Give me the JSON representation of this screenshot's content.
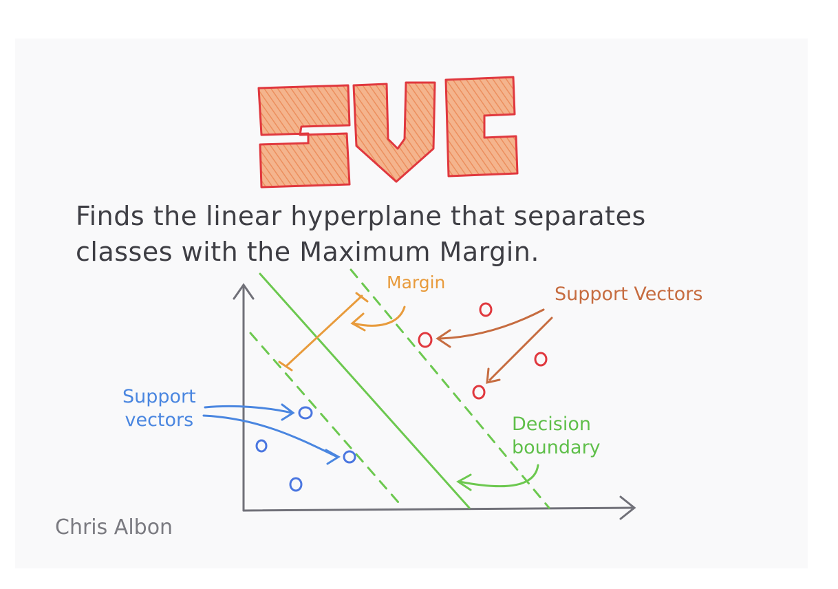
{
  "title": "SVC",
  "description": {
    "line1": "Finds the linear hyperplane that separates",
    "line2": "classes with the Maximum Margin."
  },
  "labels": {
    "margin": "Margin",
    "support_vectors_red": "Support Vectors",
    "support_vectors_blue_line1": "Support",
    "support_vectors_blue_line2": "vectors",
    "decision_line1": "Decision",
    "decision_line2": "boundary"
  },
  "signature": "Chris Albon",
  "colors": {
    "title_outline": "#e0383e",
    "title_fill": "#f0a57a",
    "boundary": "#6cc84f",
    "margin": "#e89b3c",
    "red_class": "#e0383e",
    "blue_class": "#4a76e0",
    "support_arrow_red": "#c66c40",
    "axes": "#707078"
  }
}
